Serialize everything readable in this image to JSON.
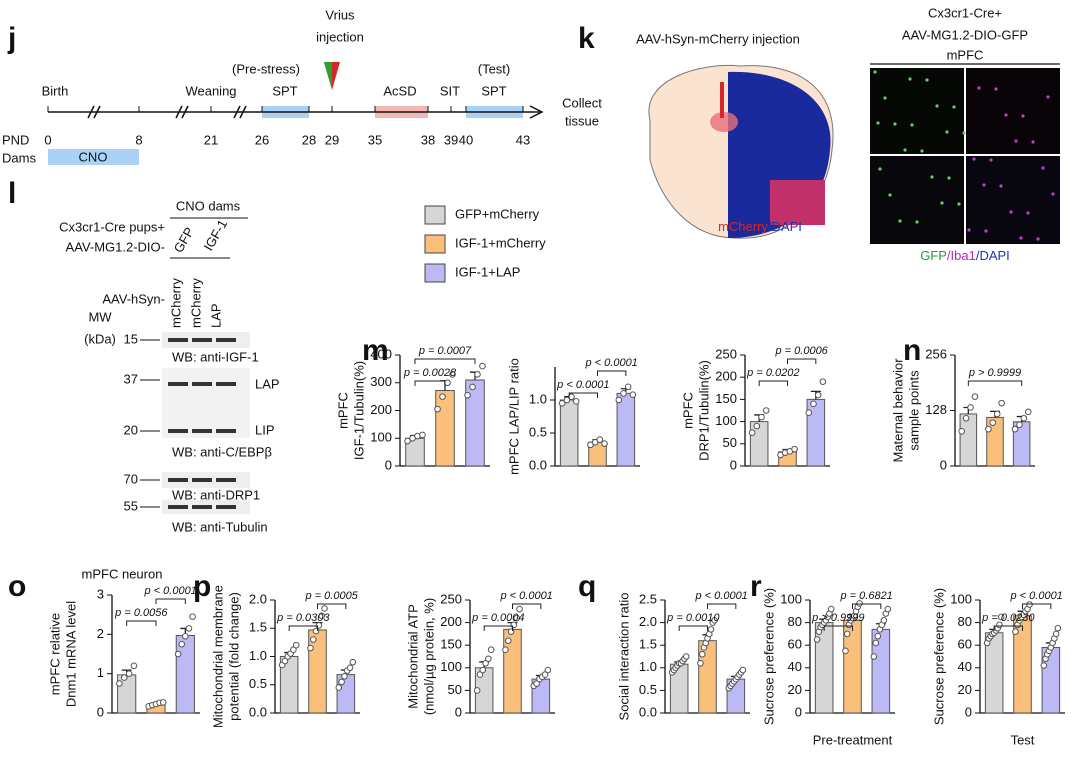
{
  "timeline": {
    "panel": "j",
    "events": {
      "birth": "Birth",
      "weaning": "Weaning",
      "pre_stress": "(Pre-stress)",
      "spt1": "SPT",
      "virus": [
        "Vrius",
        "injection"
      ],
      "acsd": "AcSD",
      "sit": "SIT",
      "test": "(Test)",
      "spt2": "SPT",
      "collect": [
        "Collect",
        "tissue"
      ]
    },
    "pnd_label": "PND",
    "days": [
      0,
      8,
      21,
      26,
      28,
      29,
      35,
      38,
      39,
      40,
      43
    ],
    "dams_label": "Dams",
    "cno": "CNO"
  },
  "injection": {
    "panel": "k",
    "title": "AAV-hSyn-mCherry injection",
    "stain": [
      "mCherry",
      "/DAPI"
    ]
  },
  "microglia": {
    "title": [
      "Cx3cr1-Cre+",
      "AAV-MG1.2-DIO-GFP",
      "mPFC"
    ],
    "stain": [
      "GFP",
      "/Iba1",
      "/DAPI"
    ]
  },
  "blot": {
    "panel": "l",
    "cno_dams": "CNO dams",
    "pups": "Cx3cr1-Cre pups+",
    "aav_mg": "AAV-MG1.2-DIO-",
    "groups": [
      "GFP",
      "IGF-1"
    ],
    "aav_hsyn": "AAV-hSyn-",
    "lanes": [
      "mCherry",
      "mCherry",
      "LAP"
    ],
    "mw": [
      "MW",
      "(kDa)"
    ],
    "markers": [
      15,
      37,
      20,
      70,
      55
    ],
    "labels": [
      "WB: anti-IGF-1",
      "LAP",
      "LIP",
      "WB: anti-C/EBPβ",
      "WB: anti-DRP1",
      "WB: anti-Tubulin"
    ]
  },
  "legend": [
    {
      "name": "GFP+mCherry",
      "color": "#d6d6d6"
    },
    {
      "name": "IGF-1+mCherry",
      "color": "#fbbf7c"
    },
    {
      "name": "IGF-1+LAP",
      "color": "#bcb9f4"
    }
  ],
  "chart_data": [
    {
      "type": "bar",
      "panel": "m",
      "ylabel": [
        "mPFC",
        "IGF-1/Tubulin(%)"
      ],
      "ylim": [
        0,
        400
      ],
      "yticks": [
        0,
        100,
        200,
        300,
        400
      ],
      "values": [
        100,
        272,
        310
      ],
      "errors": [
        10,
        35,
        28
      ],
      "points": [
        [
          90,
          100,
          108,
          112
        ],
        [
          205,
          250,
          300,
          330
        ],
        [
          255,
          285,
          330,
          360
        ]
      ],
      "comparisons": [
        {
          "pair": [
            0,
            1
          ],
          "label": "p = 0.0028"
        },
        {
          "pair": [
            0,
            2
          ],
          "label": "p = 0.0007"
        }
      ]
    },
    {
      "type": "bar",
      "ylabel": [
        "mPFC LAP/LIP ratio"
      ],
      "ylim": [
        0,
        1.5
      ],
      "yticks": [
        {
          "value": 0,
          "label": "0.0"
        },
        {
          "value": 0.5,
          "label": "0.5"
        },
        {
          "value": 1,
          "label": "1.0"
        }
      ],
      "values": [
        1.0,
        0.36,
        1.1
      ],
      "errors": [
        0.05,
        0.04,
        0.07
      ],
      "points": [
        [
          0.95,
          1.0,
          1.05,
          0.98
        ],
        [
          0.32,
          0.36,
          0.4,
          0.34
        ],
        [
          1.0,
          1.1,
          1.2,
          1.08
        ]
      ],
      "comparisons": [
        {
          "pair": [
            0,
            1
          ],
          "label": "p < 0.0001"
        },
        {
          "pair": [
            1,
            2
          ],
          "label": "p < 0.0001"
        }
      ]
    },
    {
      "type": "bar",
      "ylabel": [
        "mPFC",
        "DRP1/Tubulin(%)"
      ],
      "ylim": [
        0,
        250
      ],
      "yticks": [
        0,
        50,
        100,
        150,
        200,
        250
      ],
      "values": [
        100,
        32,
        150
      ],
      "errors": [
        15,
        5,
        18
      ],
      "points": [
        [
          75,
          90,
          110,
          125
        ],
        [
          25,
          30,
          33,
          38
        ],
        [
          120,
          140,
          160,
          190
        ]
      ],
      "comparisons": [
        {
          "pair": [
            0,
            1
          ],
          "label": "p = 0.0202"
        },
        {
          "pair": [
            1,
            2
          ],
          "label": "p = 0.0006"
        }
      ]
    },
    {
      "type": "bar",
      "panel": "n",
      "ylabel": [
        "Maternal behavior",
        "sample points"
      ],
      "ylim": [
        0,
        256
      ],
      "yticks": [
        0,
        128,
        256
      ],
      "values": [
        120,
        112,
        102
      ],
      "errors": [
        15,
        14,
        12
      ],
      "points": [
        [
          80,
          110,
          135,
          160
        ],
        [
          85,
          100,
          120,
          145
        ],
        [
          85,
          95,
          110,
          125
        ]
      ],
      "comparisons": [
        {
          "pair": [
            0,
            2
          ],
          "label": "p > 0.9999"
        }
      ]
    },
    {
      "type": "bar",
      "panel": "o",
      "title": "mPFC neuron",
      "ylabel": [
        "mPFC relative",
        "Dnm1 mRNA level"
      ],
      "ylim": [
        0,
        3
      ],
      "yticks": [
        0,
        1,
        2,
        3
      ],
      "values": [
        0.97,
        0.22,
        1.97
      ],
      "errors": [
        0.12,
        0.03,
        0.18
      ],
      "points": [
        [
          0.75,
          0.9,
          1.0,
          1.2
        ],
        [
          0.17,
          0.2,
          0.23,
          0.26,
          0.27
        ],
        [
          1.5,
          1.75,
          1.95,
          2.15,
          2.45
        ]
      ],
      "comparisons": [
        {
          "pair": [
            0,
            1
          ],
          "label": "p = 0.0056"
        },
        {
          "pair": [
            1,
            2
          ],
          "label": "p < 0.0001"
        }
      ]
    },
    {
      "type": "bar",
      "panel": "p",
      "ylabel": [
        "Mitochondrial membrane",
        "potential (fold change)"
      ],
      "ylim": [
        0,
        2
      ],
      "yticks": [
        {
          "value": 0,
          "label": "0.0"
        },
        {
          "value": 0.5,
          "label": "0.5"
        },
        {
          "value": 1,
          "label": "1.0"
        },
        {
          "value": 1.5,
          "label": "1.5"
        },
        {
          "value": 2,
          "label": "2.0"
        }
      ],
      "values": [
        1.0,
        1.47,
        0.68
      ],
      "errors": [
        0.07,
        0.13,
        0.08
      ],
      "points": [
        [
          0.85,
          0.92,
          1.0,
          1.05,
          1.12,
          1.2
        ],
        [
          1.15,
          1.3,
          1.45,
          1.55,
          1.72,
          1.85
        ],
        [
          0.45,
          0.55,
          0.65,
          0.75,
          0.8,
          0.9
        ]
      ],
      "comparisons": [
        {
          "pair": [
            0,
            1
          ],
          "label": "p = 0.0303"
        },
        {
          "pair": [
            1,
            2
          ],
          "label": "p = 0.0005"
        }
      ]
    },
    {
      "type": "bar",
      "ylabel": [
        "Mitochondrial ATP",
        "(nmol/µg protein, %)"
      ],
      "ylim": [
        0,
        250
      ],
      "yticks": [
        0,
        50,
        100,
        150,
        200,
        250
      ],
      "values": [
        100,
        185,
        75
      ],
      "errors": [
        13,
        15,
        8
      ],
      "points": [
        [
          50,
          85,
          95,
          110,
          120,
          140
        ],
        [
          140,
          160,
          180,
          195,
          210,
          230
        ],
        [
          60,
          65,
          75,
          80,
          85,
          95
        ]
      ],
      "comparisons": [
        {
          "pair": [
            0,
            1
          ],
          "label": "p = 0.0004"
        },
        {
          "pair": [
            1,
            2
          ],
          "label": "p < 0.0001"
        }
      ]
    },
    {
      "type": "bar",
      "panel": "q",
      "ylabel": [
        "Social interaction ratio"
      ],
      "ylim": [
        0,
        2.5
      ],
      "yticks": [
        {
          "value": 0,
          "label": "0.0"
        },
        {
          "value": 0.5,
          "label": "0.5"
        },
        {
          "value": 1,
          "label": "1.0"
        },
        {
          "value": 1.5,
          "label": "1.5"
        },
        {
          "value": 2,
          "label": "2.0"
        },
        {
          "value": 2.5,
          "label": "2.5"
        }
      ],
      "values": [
        1.08,
        1.6,
        0.75
      ],
      "errors": [
        0.05,
        0.13,
        0.06
      ],
      "points": [
        [
          0.9,
          0.95,
          1.0,
          1.05,
          1.1,
          1.1,
          1.15,
          1.2,
          1.25
        ],
        [
          1.1,
          1.3,
          1.45,
          1.55,
          1.65,
          1.75,
          1.85,
          2.0,
          2.05
        ],
        [
          0.55,
          0.6,
          0.65,
          0.7,
          0.75,
          0.8,
          0.85,
          0.9,
          0.95
        ]
      ],
      "comparisons": [
        {
          "pair": [
            0,
            1
          ],
          "label": "p = 0.0010"
        },
        {
          "pair": [
            1,
            2
          ],
          "label": "p < 0.0001"
        }
      ]
    },
    {
      "type": "bar",
      "panel": "r",
      "ylabel": [
        "Sucrose preference (%)"
      ],
      "xlabel": "Pre-treatment",
      "ylim": [
        0,
        100
      ],
      "yticks": [
        0,
        20,
        40,
        60,
        80,
        100
      ],
      "values": [
        80,
        82,
        74
      ],
      "errors": [
        3,
        5,
        5
      ],
      "points": [
        [
          65,
          72,
          76,
          78,
          80,
          82,
          85,
          88,
          92
        ],
        [
          55,
          70,
          78,
          82,
          84,
          86,
          90,
          94,
          97
        ],
        [
          50,
          62,
          68,
          74,
          78,
          82,
          88,
          92
        ]
      ],
      "comparisons": [
        {
          "pair": [
            0,
            1
          ],
          "label": "p > 0.9999"
        },
        {
          "pair": [
            1,
            2
          ],
          "label": "p = 0.6821"
        }
      ]
    },
    {
      "type": "bar",
      "ylabel": [
        "Sucrose preference (%)"
      ],
      "xlabel": "Test",
      "ylim": [
        0,
        100
      ],
      "yticks": [
        0,
        20,
        40,
        60,
        80,
        100
      ],
      "values": [
        71,
        86,
        58
      ],
      "errors": [
        3,
        4,
        4
      ],
      "points": [
        [
          62,
          66,
          68,
          70,
          71,
          73,
          75,
          78,
          85
        ],
        [
          72,
          78,
          82,
          85,
          87,
          90,
          92,
          96
        ],
        [
          42,
          48,
          52,
          55,
          58,
          62,
          66,
          70,
          75
        ]
      ],
      "comparisons": [
        {
          "pair": [
            0,
            1
          ],
          "label": "p = 0.0230"
        },
        {
          "pair": [
            1,
            2
          ],
          "label": "p < 0.0001"
        }
      ]
    }
  ]
}
